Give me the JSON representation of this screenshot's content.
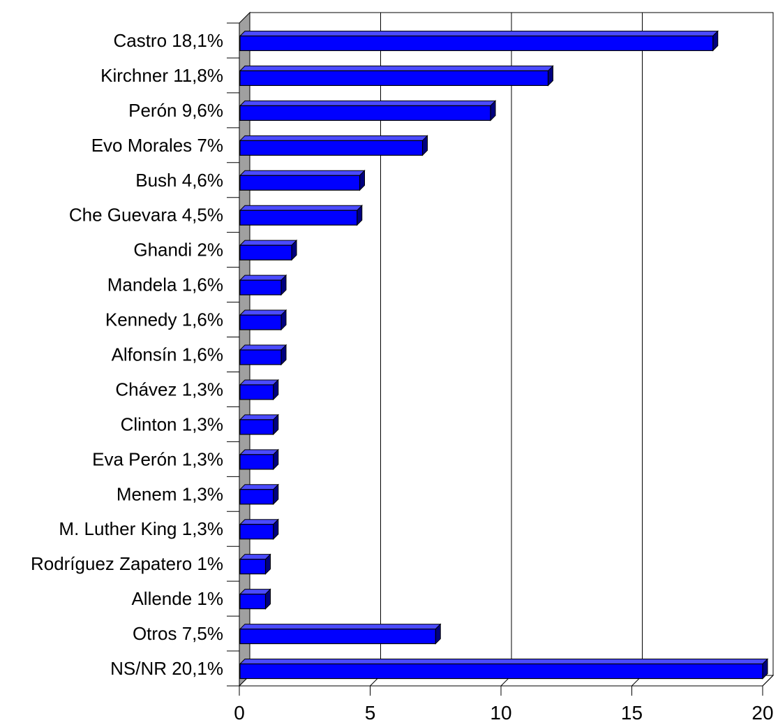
{
  "colors": {
    "bar_front": "#0000ff",
    "bar_top": "#4b4bff",
    "bar_side": "#000080",
    "back_wall": "#ffffff",
    "side_wall": "#a0a0a0",
    "grid": "#000000"
  },
  "chart_data": {
    "type": "bar",
    "orientation": "horizontal",
    "three_d": true,
    "title": "",
    "xlabel": "",
    "ylabel": "",
    "categories": [
      "Castro 18,1%",
      "Kirchner 11,8%",
      "Perón 9,6%",
      "Evo Morales 7%",
      "Bush 4,6%",
      "Che Guevara 4,5%",
      "Ghandi 2%",
      "Mandela 1,6%",
      "Kennedy 1,6%",
      "Alfonsín 1,6%",
      "Chávez 1,3%",
      "Clinton 1,3%",
      "Eva Perón 1,3%",
      "Menem 1,3%",
      "M. Luther King 1,3%",
      "Rodríguez Zapatero 1%",
      "Allende 1%",
      "Otros 7,5%",
      "NS/NR 20,1%"
    ],
    "values": [
      18.1,
      11.8,
      9.6,
      7,
      4.6,
      4.5,
      2,
      1.6,
      1.6,
      1.6,
      1.3,
      1.3,
      1.3,
      1.3,
      1.3,
      1,
      1,
      7.5,
      20.1
    ],
    "xlim": [
      0,
      20
    ],
    "xticks": [
      0,
      5,
      10,
      15,
      20
    ],
    "xtick_labels": [
      "0",
      "5",
      "10",
      "15",
      "20"
    ],
    "grid": true,
    "legend": "none"
  }
}
